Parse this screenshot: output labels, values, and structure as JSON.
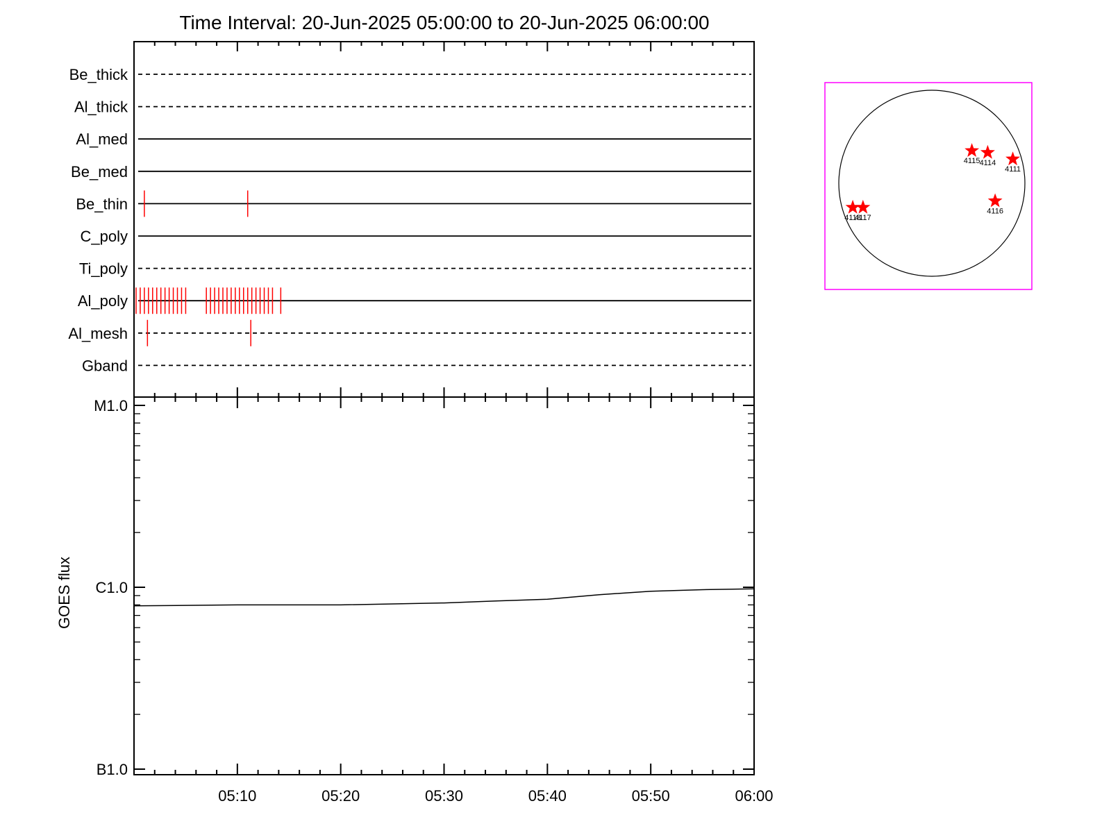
{
  "title": "Time Interval: 20-Jun-2025 05:00:00 to 20-Jun-2025 06:00:00",
  "colors": {
    "axis": "#000000",
    "event": "#ff0000",
    "frame": "#ff00ff",
    "star": "#ff0000"
  },
  "chart_data": [
    {
      "type": "timeline",
      "x_unit": "time (UT)",
      "xlim": [
        "05:00",
        "06:00"
      ],
      "channels": [
        {
          "name": "Be_thick",
          "line_style": "dashed",
          "events": []
        },
        {
          "name": "Al_thick",
          "line_style": "dashed",
          "events": []
        },
        {
          "name": "Al_med",
          "line_style": "solid",
          "events": []
        },
        {
          "name": "Be_med",
          "line_style": "solid",
          "events": []
        },
        {
          "name": "Be_thin",
          "line_style": "solid",
          "events": [
            "05:01",
            "05:11"
          ]
        },
        {
          "name": "C_poly",
          "line_style": "solid",
          "events": []
        },
        {
          "name": "Ti_poly",
          "line_style": "dashed",
          "events": []
        },
        {
          "name": "Al_poly",
          "line_style": "solid",
          "events": [
            "05:00.2",
            "05:00.6",
            "05:01.0",
            "05:01.4",
            "05:01.8",
            "05:02.2",
            "05:02.6",
            "05:03.0",
            "05:03.4",
            "05:03.8",
            "05:04.2",
            "05:04.6",
            "05:05.0",
            "05:07.0",
            "05:07.4",
            "05:07.8",
            "05:08.2",
            "05:08.6",
            "05:09.0",
            "05:09.4",
            "05:09.8",
            "05:10.2",
            "05:10.6",
            "05:11.0",
            "05:11.4",
            "05:11.8",
            "05:12.2",
            "05:12.6",
            "05:13.0",
            "05:13.4",
            "05:14.2"
          ]
        },
        {
          "name": "Al_mesh",
          "line_style": "dashed",
          "events": [
            "05:01.3",
            "05:11.3"
          ]
        },
        {
          "name": "Gband",
          "line_style": "dashed",
          "events": []
        }
      ]
    },
    {
      "type": "line",
      "ylabel": "GOES flux",
      "y_scale": "log",
      "ylim": [
        1e-07,
        1e-05
      ],
      "y_ticks": [
        {
          "label": "B1.0",
          "value": 1e-07
        },
        {
          "label": "C1.0",
          "value": 1e-06
        },
        {
          "label": "M1.0",
          "value": 1e-05
        }
      ],
      "x_ticks": [
        "05:10",
        "05:20",
        "05:30",
        "05:40",
        "05:50",
        "06:00"
      ],
      "xlim": [
        "05:00",
        "06:00"
      ],
      "series": [
        {
          "x": [
            "05:00",
            "05:10",
            "05:20",
            "05:30",
            "05:35",
            "05:40",
            "05:45",
            "05:50",
            "05:55",
            "06:00"
          ],
          "y": [
            7.9e-07,
            8e-07,
            8e-07,
            8.2e-07,
            8.4e-07,
            8.6e-07,
            9.1e-07,
            9.5e-07,
            9.7e-07,
            9.8e-07
          ]
        }
      ]
    },
    {
      "type": "scatter",
      "description_type": "solar-disk-map",
      "marker": "star",
      "xlim": [
        -1.1,
        1.1
      ],
      "ylim": [
        -1.1,
        1.1
      ],
      "points": [
        {
          "label": "4115",
          "x": 0.43,
          "y": 0.35
        },
        {
          "label": "4114",
          "x": 0.6,
          "y": 0.33
        },
        {
          "label": "4111",
          "x": 0.87,
          "y": 0.26
        },
        {
          "label": "4116",
          "x": 0.68,
          "y": -0.19
        },
        {
          "label": "4118",
          "x": -0.85,
          "y": -0.26
        },
        {
          "label": "4117",
          "x": -0.74,
          "y": -0.26
        }
      ]
    }
  ]
}
